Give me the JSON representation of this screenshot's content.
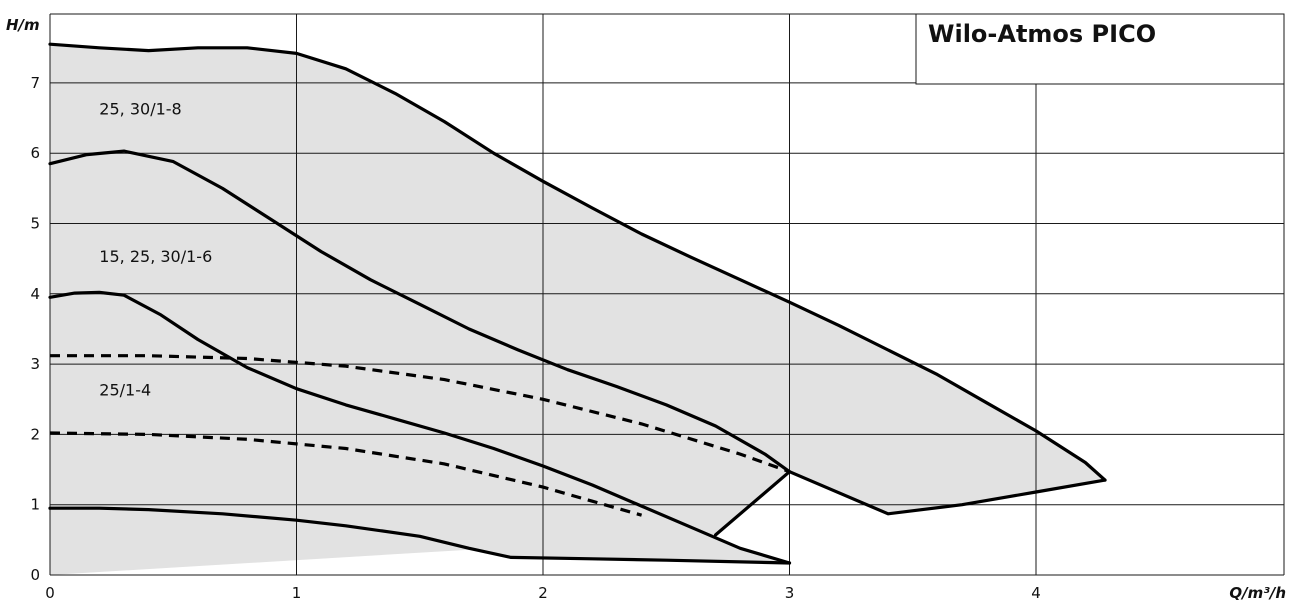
{
  "chart_data": {
    "type": "line",
    "title": "Wilo-Atmos PICO",
    "xlabel": "Q/m³/h",
    "ylabel": "H/m",
    "xlim": [
      0,
      5
    ],
    "ylim": [
      0,
      7.75
    ],
    "xticks": [
      0,
      1,
      2,
      3,
      4
    ],
    "yticks": [
      0,
      1,
      2,
      3,
      4,
      5,
      6,
      7
    ],
    "grid": true,
    "regions": [
      {
        "name": "25, 30/1-8",
        "label_at": [
          0.2,
          6.55
        ],
        "max_curve": [
          [
            0,
            7.55
          ],
          [
            0.2,
            7.5
          ],
          [
            0.4,
            7.46
          ],
          [
            0.6,
            7.5
          ],
          [
            0.8,
            7.5
          ],
          [
            1.0,
            7.42
          ],
          [
            1.2,
            7.2
          ],
          [
            1.4,
            6.85
          ],
          [
            1.6,
            6.45
          ],
          [
            1.8,
            6.0
          ],
          [
            2.0,
            5.6
          ],
          [
            2.2,
            5.22
          ],
          [
            2.4,
            4.85
          ],
          [
            2.6,
            4.52
          ],
          [
            2.8,
            4.2
          ],
          [
            3.0,
            3.88
          ],
          [
            3.2,
            3.55
          ],
          [
            3.4,
            3.2
          ],
          [
            3.6,
            2.85
          ],
          [
            3.8,
            2.45
          ],
          [
            4.0,
            2.05
          ],
          [
            4.2,
            1.6
          ],
          [
            4.28,
            1.35
          ]
        ],
        "min_curve": [
          [
            4.28,
            1.35
          ],
          [
            4.0,
            1.18
          ],
          [
            3.7,
            1.0
          ],
          [
            3.4,
            0.87
          ],
          [
            3.0,
            1.47
          ]
        ]
      },
      {
        "name": "15, 25, 30/1-6",
        "label_at": [
          0.2,
          4.45
        ],
        "max_curve": [
          [
            0,
            5.85
          ],
          [
            0.15,
            5.98
          ],
          [
            0.3,
            6.03
          ],
          [
            0.5,
            5.88
          ],
          [
            0.7,
            5.5
          ],
          [
            0.9,
            5.05
          ],
          [
            1.1,
            4.6
          ],
          [
            1.3,
            4.2
          ],
          [
            1.5,
            3.85
          ],
          [
            1.7,
            3.5
          ],
          [
            1.9,
            3.2
          ],
          [
            2.1,
            2.92
          ],
          [
            2.3,
            2.68
          ],
          [
            2.5,
            2.42
          ],
          [
            2.7,
            2.12
          ],
          [
            2.9,
            1.72
          ],
          [
            3.0,
            1.47
          ]
        ],
        "min_curve": [
          [
            3.0,
            1.47
          ],
          [
            2.7,
            0.57
          ]
        ]
      },
      {
        "name": "25/1-4",
        "label_at": [
          0.2,
          2.55
        ],
        "max_curve": [
          [
            0,
            3.95
          ],
          [
            0.1,
            4.01
          ],
          [
            0.2,
            4.02
          ],
          [
            0.3,
            3.98
          ],
          [
            0.45,
            3.7
          ],
          [
            0.6,
            3.35
          ],
          [
            0.8,
            2.95
          ],
          [
            1.0,
            2.65
          ],
          [
            1.2,
            2.42
          ],
          [
            1.4,
            2.22
          ],
          [
            1.6,
            2.02
          ],
          [
            1.8,
            1.8
          ],
          [
            2.0,
            1.55
          ],
          [
            2.2,
            1.28
          ],
          [
            2.4,
            0.98
          ],
          [
            2.6,
            0.68
          ],
          [
            2.8,
            0.38
          ],
          [
            3.0,
            0.17
          ]
        ],
        "min_curve": [
          [
            3.0,
            0.17
          ],
          [
            2.5,
            0.21
          ],
          [
            2.2,
            0.23
          ],
          [
            1.87,
            0.25
          ],
          [
            1.7,
            0.38
          ],
          [
            1.5,
            0.55
          ],
          [
            1.2,
            0.7
          ],
          [
            1.0,
            0.78
          ],
          [
            0.7,
            0.87
          ],
          [
            0.4,
            0.93
          ],
          [
            0.2,
            0.95
          ],
          [
            0,
            0.95
          ]
        ]
      }
    ],
    "dashed_curves": [
      {
        "points": [
          [
            0,
            3.12
          ],
          [
            0.4,
            3.12
          ],
          [
            0.8,
            3.08
          ],
          [
            1.2,
            2.97
          ],
          [
            1.6,
            2.78
          ],
          [
            2.0,
            2.5
          ],
          [
            2.4,
            2.15
          ],
          [
            2.8,
            1.72
          ],
          [
            3.0,
            1.47
          ]
        ]
      },
      {
        "points": [
          [
            0,
            2.02
          ],
          [
            0.4,
            2.0
          ],
          [
            0.8,
            1.93
          ],
          [
            1.2,
            1.8
          ],
          [
            1.6,
            1.58
          ],
          [
            2.0,
            1.25
          ],
          [
            2.2,
            1.05
          ],
          [
            2.4,
            0.85
          ]
        ]
      }
    ]
  }
}
